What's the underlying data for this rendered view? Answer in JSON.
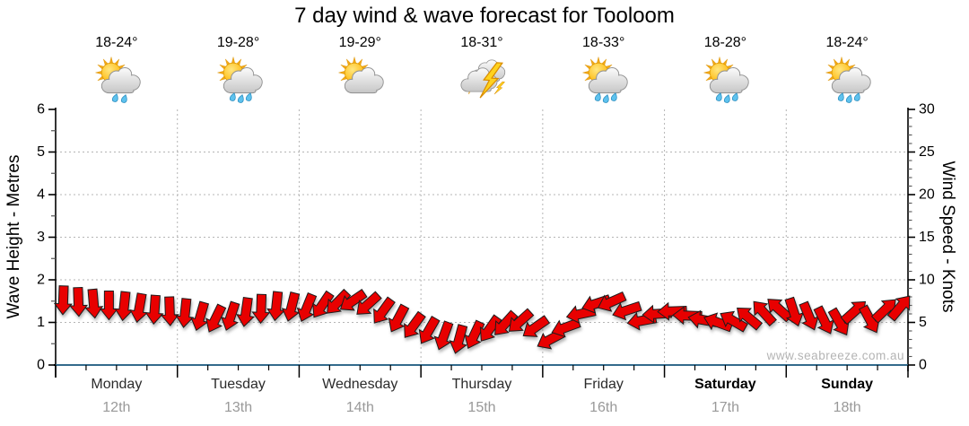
{
  "title": "7 day wind & wave forecast for Tooloom",
  "watermark": "www.seabreeze.com.au",
  "left_axis": {
    "label": "Wave Height - Metres",
    "min": 0,
    "max": 6,
    "ticks": [
      "0",
      "1",
      "2",
      "3",
      "4",
      "5",
      "6"
    ]
  },
  "right_axis": {
    "label": "Wind Speed - Knots",
    "min": 0,
    "max": 30,
    "ticks": [
      "0",
      "5",
      "10",
      "15",
      "20",
      "25",
      "30"
    ]
  },
  "days": [
    {
      "name": "Monday",
      "date": "12th",
      "temp": "18-24°",
      "icon": "sun-cloud-rain-2",
      "weekend": false
    },
    {
      "name": "Tuesday",
      "date": "13th",
      "temp": "19-28°",
      "icon": "sun-cloud-rain-3",
      "weekend": false
    },
    {
      "name": "Wednesday",
      "date": "14th",
      "temp": "19-29°",
      "icon": "sun-cloud",
      "weekend": false
    },
    {
      "name": "Thursday",
      "date": "15th",
      "temp": "18-31°",
      "icon": "storm",
      "weekend": false
    },
    {
      "name": "Friday",
      "date": "16th",
      "temp": "18-33°",
      "icon": "sun-cloud-rain-3",
      "weekend": false
    },
    {
      "name": "Saturday",
      "date": "17th",
      "temp": "18-28°",
      "icon": "sun-cloud-rain-3",
      "weekend": true
    },
    {
      "name": "Sunday",
      "date": "18th",
      "temp": "18-24°",
      "icon": "sun-cloud-rain-3",
      "weekend": true
    }
  ],
  "colors": {
    "arrow": "#e80000",
    "arrow_outline": "#1c1c1c",
    "baseline": "#336b8c",
    "grid": "#b5b5b5",
    "axis": "#000000",
    "date_text": "#999999",
    "watermark": "#b4b4b4"
  },
  "chart_data": {
    "type": "wind-barb-series",
    "title": "7 day wind & wave forecast for Tooloom",
    "x_categories": [
      "Monday 12th",
      "Tuesday 13th",
      "Wednesday 14th",
      "Thursday 15th",
      "Friday 16th",
      "Saturday 17th",
      "Sunday 18th"
    ],
    "x_step": "3 hours (8 arrows per day, 56 total)",
    "y_left_label": "Wave Height - Metres",
    "y_left_range": [
      0,
      6
    ],
    "y_right_label": "Wind Speed - Knots",
    "y_right_range": [
      0,
      30
    ],
    "grid": "dotted horizontal each metre, dotted vertical each day boundary",
    "note": "red arrows plot wind: vertical position reads on both axes (1 m = 5 kn); arrow rotation = direction wind blows toward (0=N)",
    "knots": [
      7.6,
      7.4,
      7.2,
      7.0,
      6.9,
      6.7,
      6.5,
      6.3,
      6.1,
      5.7,
      5.4,
      5.7,
      6.2,
      6.6,
      6.9,
      6.8,
      6.7,
      7.0,
      7.3,
      7.5,
      7.1,
      6.3,
      5.4,
      4.6,
      4.0,
      3.4,
      3.0,
      3.5,
      4.2,
      4.8,
      5.1,
      4.4,
      3.0,
      4.4,
      6.0,
      7.2,
      7.4,
      6.4,
      5.2,
      6.0,
      6.3,
      5.8,
      5.3,
      5.0,
      5.2,
      5.6,
      6.2,
      6.6,
      6.2,
      5.7,
      5.2,
      5.0,
      6.3,
      5.3,
      6.5,
      6.8
    ],
    "dir_deg": [
      182,
      178,
      175,
      180,
      186,
      190,
      184,
      178,
      186,
      196,
      206,
      198,
      188,
      182,
      186,
      194,
      202,
      214,
      224,
      236,
      228,
      216,
      208,
      216,
      210,
      200,
      195,
      205,
      215,
      222,
      228,
      235,
      242,
      250,
      258,
      252,
      246,
      252,
      260,
      266,
      268,
      272,
      280,
      290,
      300,
      310,
      318,
      312,
      162,
      158,
      154,
      150,
      48,
      152,
      46,
      40
    ]
  }
}
